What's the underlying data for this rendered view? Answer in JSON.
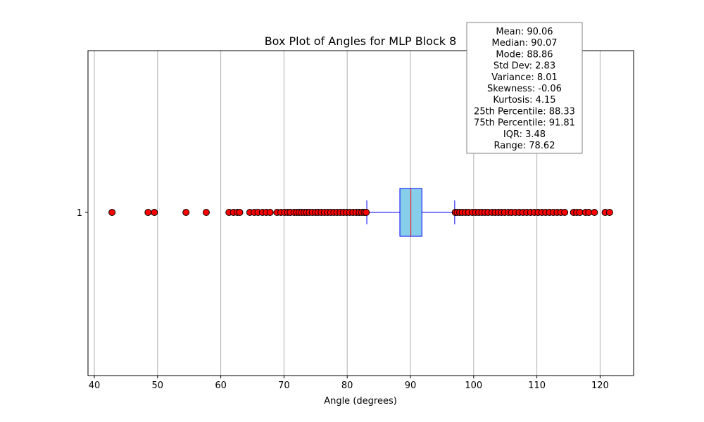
{
  "chart_data": {
    "type": "box",
    "title": "Box Plot of Angles for MLP Block 8",
    "xlabel": "Angle (degrees)",
    "ylabel": "",
    "orientation": "horizontal",
    "xlim": [
      39,
      125.3
    ],
    "xticks": [
      40,
      50,
      60,
      70,
      80,
      90,
      100,
      110,
      120
    ],
    "yticks": [
      "1"
    ],
    "grid": "x",
    "colors": {
      "box_fill": "#87ceeb",
      "box_edge": "#0000ff",
      "median": "#ff0000",
      "whisker": "#0000ff",
      "flier_fill": "#ff0000",
      "flier_edge": "#000000",
      "grid": "#b0b0b0"
    },
    "box": {
      "category": "1",
      "whisker_low": 83.1,
      "q1": 88.33,
      "median": 90.07,
      "q3": 91.81,
      "whisker_high": 97.0
    },
    "outliers": [
      42.8,
      48.5,
      49.5,
      54.5,
      57.7,
      61.3,
      62.0,
      62.6,
      63.0,
      64.6,
      65.3,
      65.9,
      66.6,
      67.2,
      67.8,
      68.9,
      69.5,
      70.1,
      70.6,
      71.0,
      71.6,
      72.0,
      72.4,
      72.8,
      73.2,
      73.6,
      74.0,
      74.5,
      75.0,
      75.4,
      75.9,
      76.4,
      76.9,
      77.4,
      77.9,
      78.4,
      78.9,
      79.4,
      79.9,
      80.4,
      80.9,
      81.4,
      81.9,
      82.3,
      82.7,
      83.0,
      97.1,
      97.4,
      97.8,
      98.2,
      98.7,
      99.2,
      99.8,
      100.3,
      100.8,
      101.3,
      101.8,
      102.3,
      102.9,
      103.4,
      103.9,
      104.4,
      104.9,
      105.5,
      106.0,
      106.6,
      107.2,
      107.8,
      108.4,
      109.0,
      109.6,
      110.2,
      110.8,
      111.4,
      112.0,
      112.6,
      113.2,
      113.8,
      114.4,
      115.8,
      116.3,
      116.8,
      117.7,
      118.2,
      119.1,
      120.8,
      121.5
    ],
    "annotation": {
      "lines": [
        "Mean: 90.06",
        "Median: 90.07",
        "Mode: 88.86",
        "Std Dev: 2.83",
        "Variance: 8.01",
        "Skewness: -0.06",
        "Kurtosis: 4.15",
        "25th Percentile: 88.33",
        "75th Percentile: 91.81",
        "IQR: 3.48",
        "Range: 78.62"
      ],
      "placement": "top-right"
    }
  }
}
